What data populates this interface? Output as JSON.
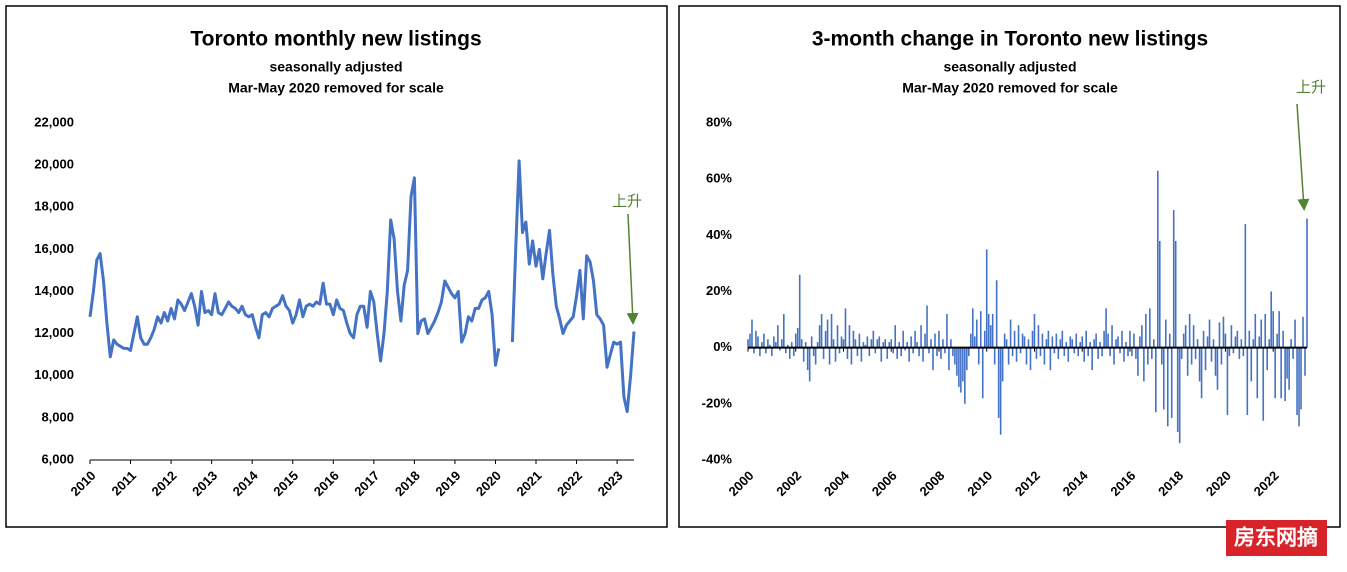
{
  "chart_data": [
    {
      "type": "line",
      "title": "Toronto monthly new listings",
      "subtitle": [
        "seasonally adjusted",
        "Mar-May 2020 removed for scale"
      ],
      "annotation": "上升",
      "categories": [
        "2010",
        null,
        null,
        null,
        null,
        null,
        null,
        null,
        null,
        null,
        null,
        null,
        "2011",
        null,
        null,
        null,
        null,
        null,
        null,
        null,
        null,
        null,
        null,
        null,
        "2012",
        null,
        null,
        null,
        null,
        null,
        null,
        null,
        null,
        null,
        null,
        null,
        "2013",
        null,
        null,
        null,
        null,
        null,
        null,
        null,
        null,
        null,
        null,
        null,
        "2014",
        null,
        null,
        null,
        null,
        null,
        null,
        null,
        null,
        null,
        null,
        null,
        "2015",
        null,
        null,
        null,
        null,
        null,
        null,
        null,
        null,
        null,
        null,
        null,
        "2016",
        null,
        null,
        null,
        null,
        null,
        null,
        null,
        null,
        null,
        null,
        null,
        "2017",
        null,
        null,
        null,
        null,
        null,
        null,
        null,
        null,
        null,
        null,
        null,
        "2018",
        null,
        null,
        null,
        null,
        null,
        null,
        null,
        null,
        null,
        null,
        null,
        "2019",
        null,
        null,
        null,
        null,
        null,
        null,
        null,
        null,
        null,
        null,
        null,
        "2020",
        null,
        null,
        null,
        null,
        null,
        null,
        null,
        null,
        null,
        null,
        null,
        "2021",
        null,
        null,
        null,
        null,
        null,
        null,
        null,
        null,
        null,
        null,
        null,
        "2022",
        null,
        null,
        null,
        null,
        null,
        null,
        null,
        null,
        null,
        null,
        null,
        "2023",
        null,
        null,
        null,
        null,
        null
      ],
      "series": [
        {
          "color": "#4472c4",
          "values": [
            12800,
            14000,
            15500,
            15800,
            14500,
            12500,
            10900,
            11700,
            11500,
            11400,
            11300,
            11300,
            11200,
            12000,
            12800,
            11800,
            11500,
            11500,
            11800,
            12200,
            12800,
            12500,
            13000,
            12600,
            13200,
            12700,
            13600,
            13400,
            13100,
            13500,
            13900,
            13300,
            12400,
            14000,
            13000,
            13100,
            12900,
            13900,
            13000,
            12900,
            13200,
            13500,
            13300,
            13200,
            13000,
            13300,
            12900,
            12800,
            12900,
            12300,
            11800,
            12900,
            13000,
            12800,
            13200,
            13300,
            13400,
            13800,
            13300,
            13100,
            12500,
            12900,
            13600,
            12800,
            13300,
            13400,
            13300,
            13500,
            13400,
            14400,
            13400,
            13400,
            12900,
            13600,
            13200,
            13100,
            12500,
            12000,
            11800,
            12900,
            13300,
            13300,
            12300,
            14000,
            13500,
            12000,
            10700,
            12000,
            14000,
            17400,
            16500,
            14000,
            12600,
            14300,
            15000,
            18500,
            19400,
            12000,
            12600,
            12700,
            12000,
            12300,
            12600,
            13000,
            13500,
            14500,
            14200,
            13900,
            13700,
            14000,
            11600,
            12000,
            12800,
            12600,
            13200,
            13200,
            13600,
            13700,
            14000,
            12900,
            10500,
            11300,
            null,
            null,
            null,
            11600,
            16000,
            20200,
            16800,
            17300,
            15300,
            16400,
            15200,
            16000,
            14600,
            15800,
            16900,
            14800,
            13300,
            12700,
            12000,
            12400,
            12600,
            12800,
            13800,
            15000,
            12700,
            15700,
            15400,
            14500,
            12900,
            12700,
            12400,
            10400,
            11000,
            11600,
            11500,
            11600,
            9000,
            8300,
            10000,
            12100
          ]
        }
      ],
      "ylim": [
        6000,
        22000
      ],
      "yticks": [
        {
          "value": 6000,
          "label": "6,000"
        },
        {
          "value": 8000,
          "label": "8,000"
        },
        {
          "value": 10000,
          "label": "10,000"
        },
        {
          "value": 12000,
          "label": "12,000"
        },
        {
          "value": 14000,
          "label": "14,000"
        },
        {
          "value": 16000,
          "label": "16,000"
        },
        {
          "value": 18000,
          "label": "18,000"
        },
        {
          "value": 20000,
          "label": "20,000"
        },
        {
          "value": 22000,
          "label": "22,000"
        }
      ]
    },
    {
      "type": "bar",
      "title": "3-month change in Toronto new listings",
      "subtitle": [
        "seasonally adjusted",
        "Mar-May 2020 removed for scale"
      ],
      "annotation": "上升",
      "categories": [
        "2000",
        null,
        null,
        null,
        null,
        null,
        null,
        null,
        null,
        null,
        null,
        null,
        null,
        null,
        null,
        null,
        null,
        null,
        null,
        null,
        null,
        null,
        null,
        null,
        "2002",
        null,
        null,
        null,
        null,
        null,
        null,
        null,
        null,
        null,
        null,
        null,
        null,
        null,
        null,
        null,
        null,
        null,
        null,
        null,
        null,
        null,
        null,
        null,
        "2004",
        null,
        null,
        null,
        null,
        null,
        null,
        null,
        null,
        null,
        null,
        null,
        null,
        null,
        null,
        null,
        null,
        null,
        null,
        null,
        null,
        null,
        null,
        null,
        "2006",
        null,
        null,
        null,
        null,
        null,
        null,
        null,
        null,
        null,
        null,
        null,
        null,
        null,
        null,
        null,
        null,
        null,
        null,
        null,
        null,
        null,
        null,
        null,
        "2008",
        null,
        null,
        null,
        null,
        null,
        null,
        null,
        null,
        null,
        null,
        null,
        null,
        null,
        null,
        null,
        null,
        null,
        null,
        null,
        null,
        null,
        null,
        null,
        "2010",
        null,
        null,
        null,
        null,
        null,
        null,
        null,
        null,
        null,
        null,
        null,
        null,
        null,
        null,
        null,
        null,
        null,
        null,
        null,
        null,
        null,
        null,
        null,
        "2012",
        null,
        null,
        null,
        null,
        null,
        null,
        null,
        null,
        null,
        null,
        null,
        null,
        null,
        null,
        null,
        null,
        null,
        null,
        null,
        null,
        null,
        null,
        null,
        "2014",
        null,
        null,
        null,
        null,
        null,
        null,
        null,
        null,
        null,
        null,
        null,
        null,
        null,
        null,
        null,
        null,
        null,
        null,
        null,
        null,
        null,
        null,
        null,
        "2016",
        null,
        null,
        null,
        null,
        null,
        null,
        null,
        null,
        null,
        null,
        null,
        null,
        null,
        null,
        null,
        null,
        null,
        null,
        null,
        null,
        null,
        null,
        null,
        "2018",
        null,
        null,
        null,
        null,
        null,
        null,
        null,
        null,
        null,
        null,
        null,
        null,
        null,
        null,
        null,
        null,
        null,
        null,
        null,
        null,
        null,
        null,
        null,
        "2020",
        null,
        null,
        null,
        null,
        null,
        null,
        null,
        null,
        null,
        null,
        null,
        null,
        null,
        null,
        null,
        null,
        null,
        null,
        null,
        null,
        null,
        null,
        null,
        "2022",
        null,
        null,
        null,
        null,
        null,
        null,
        null,
        null,
        null,
        null,
        null,
        null,
        null,
        null,
        null,
        null,
        null
      ],
      "series": [
        {
          "color": "#4472c4",
          "values": [
            3,
            5,
            10,
            -2,
            6,
            4,
            -3,
            2,
            5,
            -2,
            3,
            1,
            -3,
            4,
            2,
            8,
            -1,
            3,
            12,
            -2,
            1,
            -4,
            2,
            -3,
            5,
            7,
            26,
            3,
            -5,
            2,
            -8,
            -12,
            4,
            -3,
            -6,
            2,
            8,
            12,
            -4,
            6,
            10,
            -6,
            12,
            3,
            -5,
            8,
            -2,
            4,
            3,
            14,
            -4,
            8,
            -6,
            6,
            3,
            -3,
            5,
            -5,
            2,
            1,
            4,
            -3,
            3,
            6,
            -2,
            3,
            4,
            -5,
            2,
            3,
            -4,
            2,
            3,
            -2,
            8,
            -4,
            2,
            -3,
            6,
            -1,
            2,
            -5,
            4,
            -2,
            6,
            2,
            -3,
            8,
            -5,
            5,
            15,
            -2,
            3,
            -8,
            5,
            -3,
            6,
            -4,
            3,
            -2,
            12,
            -8,
            3,
            -3,
            -6,
            -10,
            -14,
            -16,
            -12,
            -20,
            -8,
            -3,
            5,
            14,
            4,
            10,
            -6,
            13,
            -18,
            6,
            35,
            12,
            8,
            12,
            -6,
            24,
            -25,
            -31,
            -12,
            5,
            3,
            -6,
            10,
            -3,
            6,
            -5,
            8,
            -2,
            5,
            4,
            -6,
            3,
            -8,
            6,
            12,
            -4,
            8,
            -3,
            5,
            -6,
            3,
            6,
            -8,
            4,
            -2,
            5,
            -4,
            3,
            6,
            -3,
            2,
            -5,
            4,
            3,
            -2,
            5,
            -3,
            2,
            4,
            -5,
            6,
            -3,
            2,
            -8,
            3,
            5,
            -4,
            2,
            -3,
            6,
            14,
            5,
            -3,
            8,
            -6,
            3,
            4,
            -2,
            6,
            -5,
            2,
            -3,
            6,
            -3,
            5,
            -4,
            -10,
            4,
            8,
            -12,
            12,
            -6,
            14,
            -4,
            3,
            -23,
            63,
            38,
            -6,
            -22,
            10,
            -28,
            5,
            -25,
            49,
            38,
            -30,
            -34,
            -4,
            5,
            8,
            -10,
            12,
            -6,
            8,
            -4,
            3,
            -12,
            -18,
            6,
            -8,
            4,
            10,
            -5,
            3,
            -10,
            -15,
            9,
            -6,
            11,
            5,
            -24,
            -3,
            8,
            -2,
            4,
            6,
            -4,
            3,
            -3,
            44,
            -24,
            6,
            -12,
            3,
            12,
            -18,
            4,
            10,
            -26,
            12,
            -8,
            3,
            20,
            13,
            -18,
            5,
            13,
            -18,
            6,
            -19,
            -11,
            -15,
            3,
            -4,
            10,
            -24,
            -28,
            -22,
            11,
            -10,
            46
          ]
        }
      ],
      "ylim": [
        -40,
        80
      ],
      "yticks": [
        {
          "value": -40,
          "label": "-40%"
        },
        {
          "value": -20,
          "label": "-20%"
        },
        {
          "value": 0,
          "label": "0%"
        },
        {
          "value": 20,
          "label": "20%"
        },
        {
          "value": 40,
          "label": "40%"
        },
        {
          "value": 60,
          "label": "60%"
        },
        {
          "value": 80,
          "label": "80%"
        }
      ]
    }
  ],
  "watermark": "房东网摘"
}
